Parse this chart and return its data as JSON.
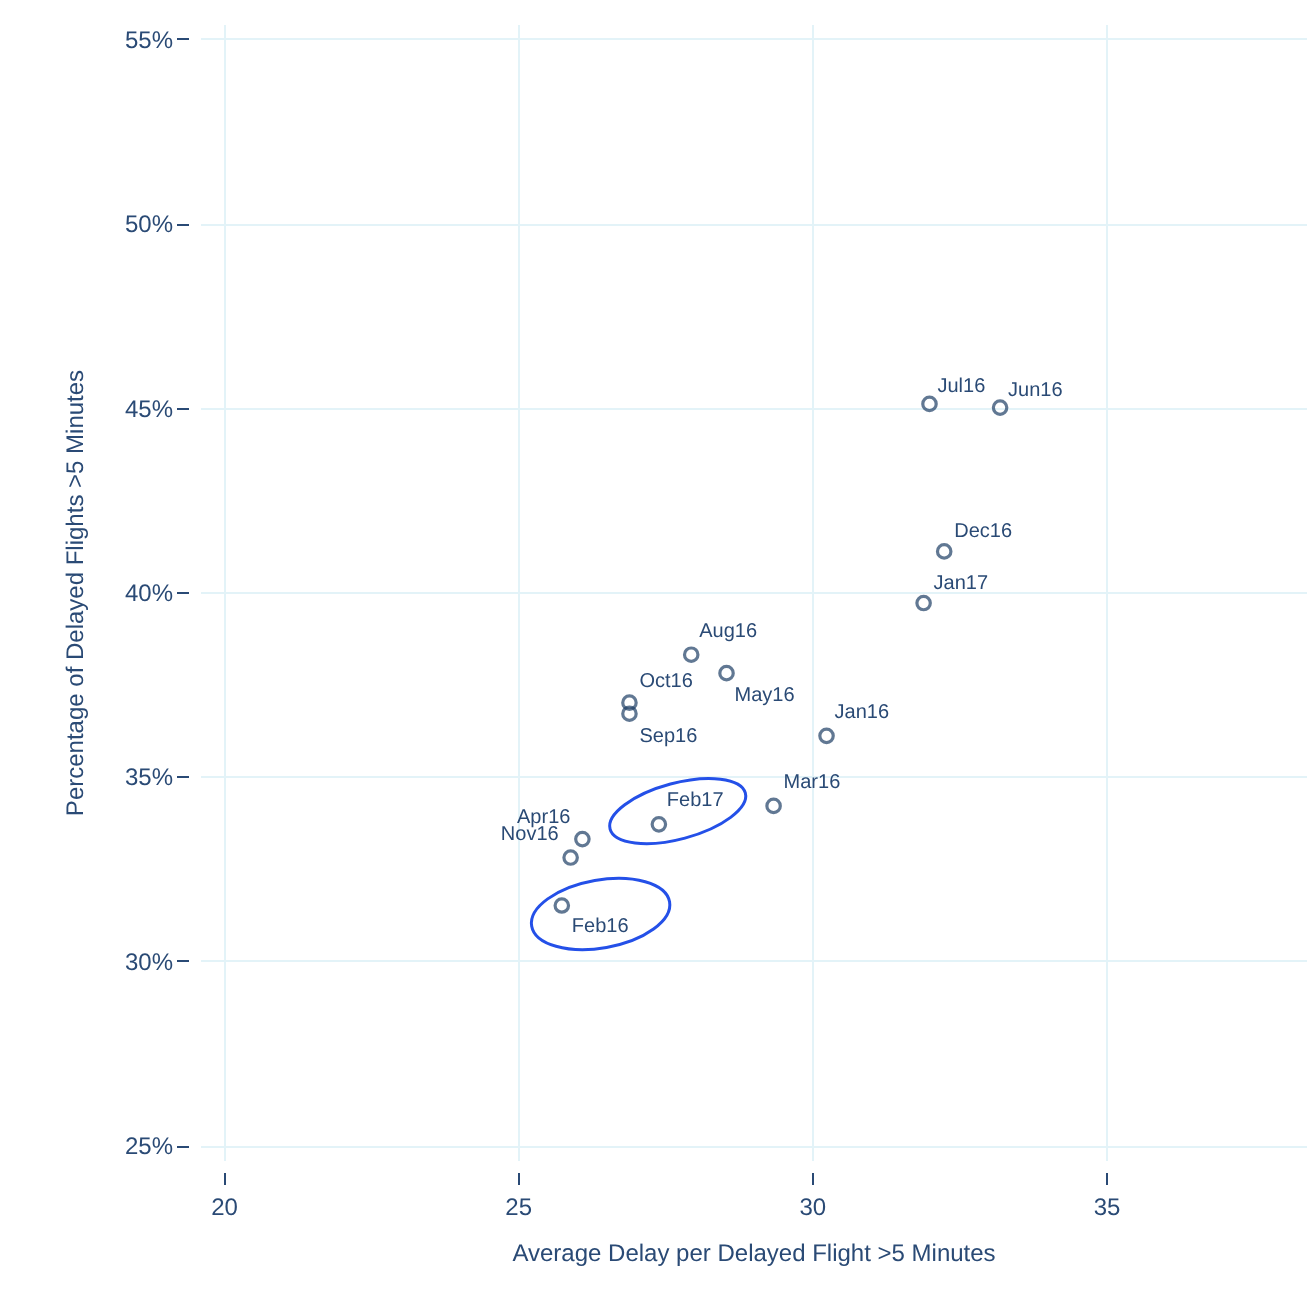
{
  "chart_data": {
    "type": "scatter",
    "xlabel": "Average Delay per Delayed Flight >5 Minutes",
    "ylabel": "Percentage of Delayed Flights >5 Minutes",
    "x": [
      32.0,
      33.2,
      32.25,
      31.9,
      27.95,
      28.55,
      26.9,
      26.9,
      30.25,
      29.35,
      27.4,
      26.1,
      25.9,
      25.75
    ],
    "series": [
      {
        "color": "#1f3f66",
        "values": [
          45.1,
          45.0,
          41.1,
          39.7,
          38.3,
          37.8,
          37.0,
          36.7,
          36.1,
          34.2,
          33.7,
          33.3,
          32.8,
          31.5
        ],
        "value_labels": [
          "Jul16",
          "Jun16",
          "Dec16",
          "Jan17",
          "Aug16",
          "May16",
          "Oct16",
          "Sep16",
          "Jan16",
          "Mar16",
          "Feb17",
          "Apr16",
          "Nov16",
          "Feb16"
        ]
      }
    ],
    "marker": "circle",
    "grid": true,
    "xlim": [
      19.6,
      38.4
    ],
    "xticks": [
      20,
      25,
      30,
      35
    ],
    "ylim": [
      24.6,
      55.4
    ],
    "yticks": [
      {
        "value": 25,
        "label": "25%"
      },
      {
        "value": 30,
        "label": "30%"
      },
      {
        "value": 35,
        "label": "35%"
      },
      {
        "value": 40,
        "label": "40%"
      },
      {
        "value": 45,
        "label": "45%"
      },
      {
        "value": 50,
        "label": "50%"
      },
      {
        "value": 55,
        "label": "55%"
      }
    ]
  }
}
